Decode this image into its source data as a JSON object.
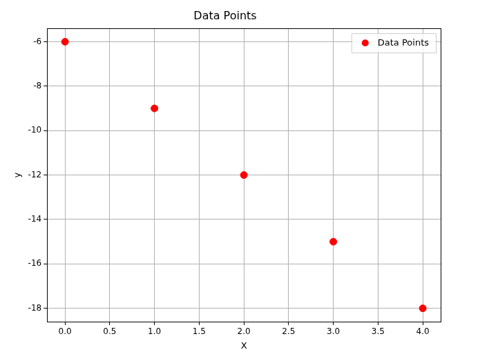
{
  "chart_data": {
    "type": "scatter",
    "title": "Data Points",
    "x_label": "X",
    "y_label": "y",
    "series": [
      {
        "name": "Data Points",
        "color": "#ff0000",
        "marker": "circle",
        "x": [
          0,
          1,
          2,
          3,
          4
        ],
        "values": [
          -6,
          -9,
          -12,
          -15,
          -18
        ]
      }
    ],
    "xlim": [
      -0.2,
      4.2
    ],
    "xticks": [
      {
        "value": 0,
        "label": "0.0"
      },
      0.5,
      {
        "value": 1,
        "label": "1.0"
      },
      1.5,
      {
        "value": 2,
        "label": "2.0"
      },
      2.5,
      {
        "value": 3,
        "label": "3.0"
      },
      3.5,
      {
        "value": 4,
        "label": "4.0"
      }
    ],
    "ylim": [
      -18.6,
      -5.4
    ],
    "yticks": [
      -18,
      -16,
      -14,
      -12,
      -10,
      -8,
      -6
    ],
    "grid": true,
    "legend": "upper right"
  }
}
